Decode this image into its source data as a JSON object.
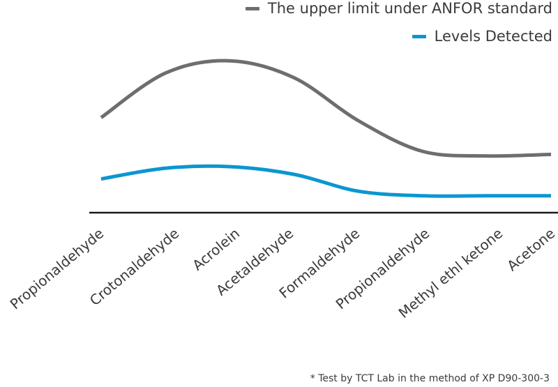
{
  "chart_data": {
    "type": "line",
    "categories": [
      "Propionaldehyde",
      "Crotonaldehyde",
      "Acrolein",
      "Acetaldehyde",
      "Formaldehyde",
      "Propionaldehyde",
      "Methyl ethl ketone",
      "Acetone"
    ],
    "series": [
      {
        "name": "The upper limit under ANFOR standard",
        "color": "#6d6e71",
        "values": [
          62,
          91,
          99,
          88,
          60,
          40,
          37,
          38
        ]
      },
      {
        "name": "Levels Detected",
        "color": "#0b96d0",
        "values": [
          22,
          29,
          30,
          25,
          14,
          11,
          11,
          11
        ]
      }
    ],
    "ylim": [
      0,
      120
    ],
    "grid": false,
    "legend_position": "top-right",
    "title": "",
    "xlabel": "",
    "ylabel": ""
  },
  "footnote": "* Test by TCT Lab in the method of XP D90-300-3"
}
